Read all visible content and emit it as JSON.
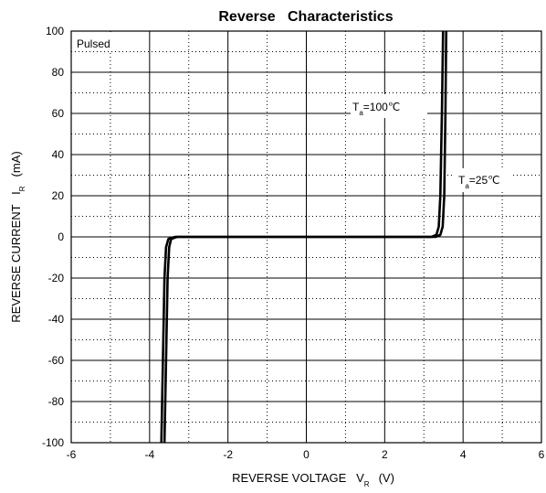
{
  "chart_data": {
    "type": "line",
    "title": "Reverse   Characteristics",
    "xlabel": {
      "main": "REVERSE VOLTAGE   V",
      "sub": "R",
      "unit": "(V)"
    },
    "ylabel": {
      "main": "REVERSE CURRENT   I",
      "sub": "R",
      "unit": "(mA)"
    },
    "xlim": [
      -6,
      6
    ],
    "ylim": [
      -100,
      100
    ],
    "x_ticks": [
      "-6",
      "-4",
      "-2",
      "0",
      "2",
      "4",
      "6"
    ],
    "y_ticks": [
      "100",
      "80",
      "60",
      "40",
      "20",
      "0",
      "-20",
      "-40",
      "-60",
      "-80",
      "-100"
    ],
    "grid": true,
    "legend_note": "Pulsed",
    "series": [
      {
        "name": "Ta=100℃",
        "label": {
          "main": "T",
          "sub": "a",
          "rest": "=100℃"
        },
        "points": [
          [
            -3.62,
            -100
          ],
          [
            -3.58,
            -60
          ],
          [
            -3.54,
            -20
          ],
          [
            -3.5,
            -5
          ],
          [
            -3.45,
            -1
          ],
          [
            -3.3,
            0
          ],
          [
            0,
            0
          ],
          [
            3.2,
            0
          ],
          [
            3.32,
            1
          ],
          [
            3.38,
            5
          ],
          [
            3.42,
            20
          ],
          [
            3.46,
            60
          ],
          [
            3.49,
            100
          ]
        ]
      },
      {
        "name": "Ta=25℃",
        "label": {
          "main": "T",
          "sub": "a",
          "rest": "=25℃"
        },
        "points": [
          [
            -3.7,
            -100
          ],
          [
            -3.66,
            -60
          ],
          [
            -3.62,
            -20
          ],
          [
            -3.58,
            -5
          ],
          [
            -3.52,
            -1
          ],
          [
            -3.35,
            0
          ],
          [
            0,
            0
          ],
          [
            3.3,
            0
          ],
          [
            3.42,
            1
          ],
          [
            3.48,
            5
          ],
          [
            3.52,
            20
          ],
          [
            3.55,
            60
          ],
          [
            3.57,
            100
          ]
        ]
      }
    ]
  }
}
